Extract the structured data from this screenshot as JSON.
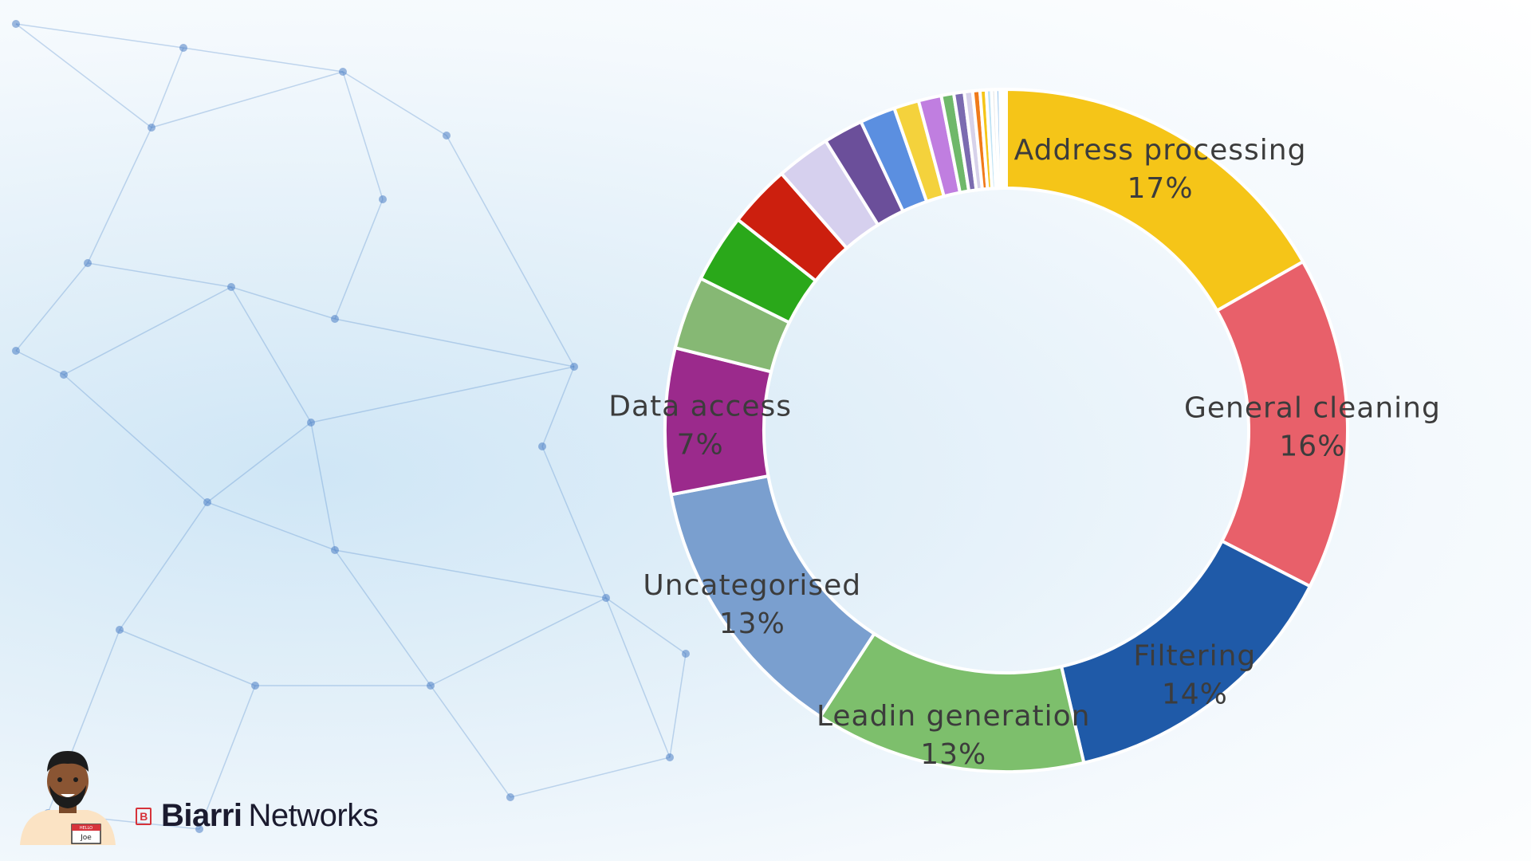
{
  "chart_data": {
    "type": "pie",
    "donut": true,
    "slices": [
      {
        "label": "Address processing",
        "value": 17,
        "value_label": "17%",
        "color": "#f5c518",
        "labeled": true
      },
      {
        "label": "General cleaning",
        "value": 16,
        "value_label": "16%",
        "color": "#e8606a",
        "labeled": true
      },
      {
        "label": "Filtering",
        "value": 14,
        "value_label": "14%",
        "color": "#1f5aa8",
        "labeled": true
      },
      {
        "label": "Leadin generation",
        "value": 13,
        "value_label": "13%",
        "color": "#7dbf6c",
        "labeled": true
      },
      {
        "label": "Uncategorised",
        "value": 13,
        "value_label": "13%",
        "color": "#7a9fcf",
        "labeled": true
      },
      {
        "label": "Data access",
        "value": 7,
        "value_label": "7%",
        "color": "#9b2a8c",
        "labeled": true
      },
      {
        "label": "",
        "value": 3.5,
        "value_label": "",
        "color": "#86b874",
        "labeled": false
      },
      {
        "label": "",
        "value": 3.3,
        "value_label": "",
        "color": "#2aa81a",
        "labeled": false
      },
      {
        "label": "",
        "value": 3.0,
        "value_label": "",
        "color": "#cc1f0e",
        "labeled": false
      },
      {
        "label": "",
        "value": 2.6,
        "value_label": "",
        "color": "#d6d0ee",
        "labeled": false
      },
      {
        "label": "",
        "value": 1.9,
        "value_label": "",
        "color": "#6b4f9a",
        "labeled": false
      },
      {
        "label": "",
        "value": 1.7,
        "value_label": "",
        "color": "#5b8fe0",
        "labeled": false
      },
      {
        "label": "",
        "value": 1.2,
        "value_label": "",
        "color": "#f4d23c",
        "labeled": false
      },
      {
        "label": "",
        "value": 1.1,
        "value_label": "",
        "color": "#c07ee0",
        "labeled": false
      },
      {
        "label": "",
        "value": 0.6,
        "value_label": "",
        "color": "#6fb86a",
        "labeled": false
      },
      {
        "label": "",
        "value": 0.5,
        "value_label": "",
        "color": "#7b6bb0",
        "labeled": false
      },
      {
        "label": "",
        "value": 0.4,
        "value_label": "",
        "color": "#d7d2ea",
        "labeled": false
      },
      {
        "label": "",
        "value": 0.35,
        "value_label": "",
        "color": "#f07a1a",
        "labeled": false
      },
      {
        "label": "",
        "value": 0.3,
        "value_label": "",
        "color": "#f5c518",
        "labeled": false
      },
      {
        "label": "",
        "value": 0.25,
        "value_label": "",
        "color": "#bfe3f5",
        "labeled": false
      },
      {
        "label": "",
        "value": 0.2,
        "value_label": "",
        "color": "#e8e8e8",
        "labeled": false
      },
      {
        "label": "",
        "value": 0.2,
        "value_label": "",
        "color": "#9fc8ee",
        "labeled": false
      },
      {
        "label": "",
        "value": 0.15,
        "value_label": "",
        "color": "#5b8fe0",
        "labeled": false
      },
      {
        "label": "",
        "value": 0.15,
        "value_label": "",
        "color": "#c9dcf2",
        "labeled": false
      }
    ],
    "title": "",
    "legend": "none"
  },
  "footer": {
    "badge_text": "Joe",
    "badge_header": "HELLO",
    "brand_logo_glyph": "B",
    "brand_name": "Biarri",
    "brand_suffix": "Networks",
    "brand_color": "#d6333a"
  },
  "icons": {
    "avatar": "person-avatar-icon",
    "brand_logo": "biarri-logo-icon",
    "background": "network-mesh-background"
  }
}
